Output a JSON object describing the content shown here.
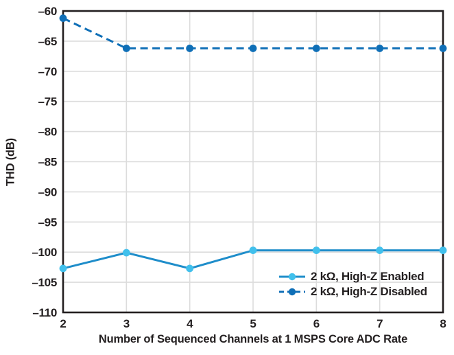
{
  "figure": {
    "background": "#ffffff",
    "frame_color": "#231f20",
    "grid_color": "#dcdcdc",
    "text_color": "#231f20"
  },
  "chart_data": {
    "type": "line",
    "title": "",
    "xlabel": "Number of Sequenced Channels at 1 MSPS Core ADC Rate",
    "ylabel": "THD (dB)",
    "x": [
      2,
      3,
      4,
      5,
      6,
      7,
      8
    ],
    "xlim": [
      2,
      8
    ],
    "ylim": [
      -110,
      -60
    ],
    "x_ticks": [
      2,
      3,
      4,
      5,
      6,
      7,
      8
    ],
    "x_tick_labels": [
      "2",
      "3",
      "4",
      "5",
      "6",
      "7",
      "8"
    ],
    "y_ticks": [
      -60,
      -65,
      -70,
      -75,
      -80,
      -85,
      -90,
      -95,
      -100,
      -105,
      -110
    ],
    "y_tick_labels": [
      "–60",
      "–65",
      "–70",
      "–75",
      "–80",
      "–85",
      "–90",
      "–95",
      "–100",
      "–105",
      "–110"
    ],
    "grid": true,
    "legend_position": "inside-bottom-right",
    "series": [
      {
        "name": "2 kΩ, High-Z Enabled",
        "line_style": "solid",
        "line_color": "#1e8dca",
        "marker_color": "#41c0ec",
        "values": [
          -102.7,
          -100.1,
          -102.7,
          -99.7,
          -99.7,
          -99.7,
          -99.7
        ]
      },
      {
        "name": "2 kΩ, High-Z Disabled",
        "line_style": "dashed",
        "line_color": "#0f6fb7",
        "marker_color": "#0f6fb7",
        "values": [
          -61.2,
          -66.2,
          -66.2,
          -66.2,
          -66.2,
          -66.2,
          -66.2
        ]
      }
    ]
  }
}
